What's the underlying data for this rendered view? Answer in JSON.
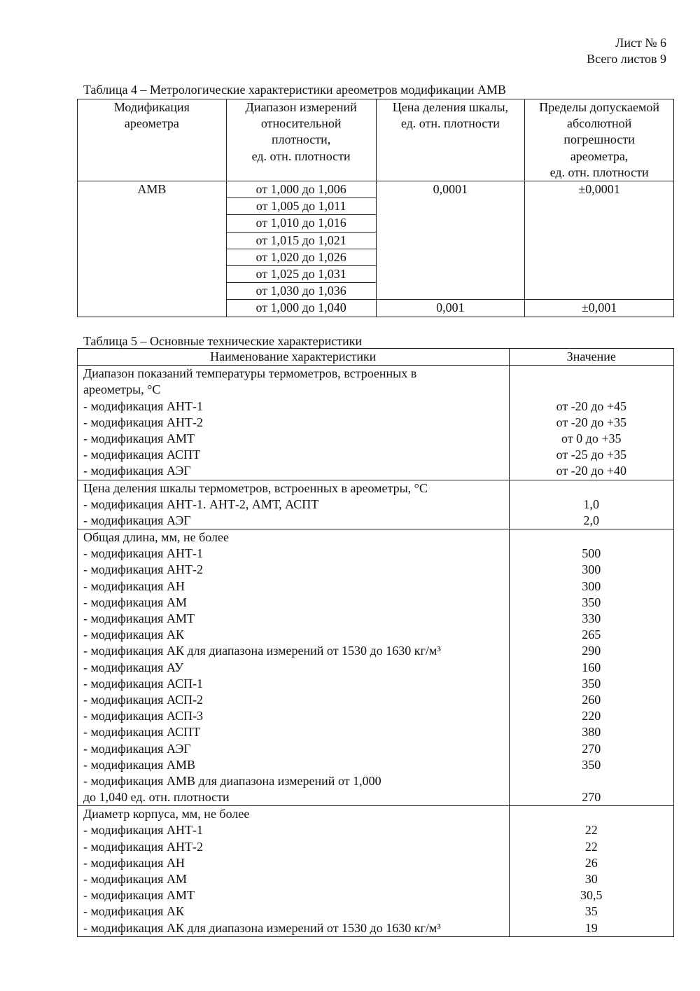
{
  "header": {
    "sheet": "Лист № 6",
    "total": "Всего листов 9"
  },
  "table4": {
    "caption": "Таблица 4 – Метрологические характеристики ареометров модификации АМВ",
    "headers": [
      "Модификация ареометра",
      "Диапазон измерений относительной плотности, ед. отн. плотности",
      "Цена деления шкалы, ед. отн. плотности",
      "Пределы допускаемой абсолютной погрешности ареометра, ед. отн. плотности"
    ],
    "header_lines": [
      [
        "Модификация",
        "ареометра"
      ],
      [
        "Диапазон измерений",
        "относительной",
        "плотности,",
        "ед. отн. плотности"
      ],
      [
        "Цена деления шкалы,",
        "ед. отн. плотности"
      ],
      [
        "Пределы допускаемой",
        "абсолютной",
        "погрешности",
        "ареометра,",
        "ед. отн. плотности"
      ]
    ],
    "modification": "АМВ",
    "ranges": [
      "от 1,000 до 1,006",
      "от 1,005 до 1,011",
      "от 1,010 до 1,016",
      "от 1,015 до 1,021",
      "от 1,020 до 1,026",
      "от 1,025 до 1,031",
      "от 1,030 до 1,036",
      "от 1,000 до 1,040"
    ],
    "division_1": "0,0001",
    "error_1": "±0,0001",
    "division_2": "0,001",
    "error_2": "±0,001"
  },
  "table5": {
    "caption": "Таблица 5 – Основные технические характеристики",
    "headers": [
      "Наименование характеристики",
      "Значение"
    ],
    "sections": [
      {
        "lines": [
          [
            "Диапазон показаний температуры термометров, встроенных в",
            ""
          ],
          [
            "ареометры, °С",
            ""
          ],
          [
            "- модификация АНТ-1",
            "от -20 до +45"
          ],
          [
            "- модификация АНТ-2",
            "от -20 до +35"
          ],
          [
            "- модификация АМТ",
            "от 0 до +35"
          ],
          [
            "- модификация АСПТ",
            "от -25 до +35"
          ],
          [
            "- модификация АЭГ",
            "от -20 до +40"
          ]
        ]
      },
      {
        "lines": [
          [
            "Цена деления шкалы термометров, встроенных в ареометры, °С",
            ""
          ],
          [
            "- модификация АНТ-1. АНТ-2, АМТ, АСПТ",
            "1,0"
          ],
          [
            "- модификация АЭГ",
            "2,0"
          ]
        ]
      },
      {
        "lines": [
          [
            "Общая длина, мм, не более",
            ""
          ],
          [
            "- модификация АНТ-1",
            "500"
          ],
          [
            "- модификация АНТ-2",
            "300"
          ],
          [
            "- модификация АН",
            "300"
          ],
          [
            "- модификация АМ",
            "350"
          ],
          [
            "- модификация АМТ",
            "330"
          ],
          [
            "- модификация АК",
            "265"
          ],
          [
            "- модификация АК для диапазона измерений от 1530 до 1630 кг/м³",
            "290"
          ],
          [
            "- модификация АУ",
            "160"
          ],
          [
            "- модификация АСП-1",
            "350"
          ],
          [
            "- модификация АСП-2",
            "260"
          ],
          [
            "- модификация АСП-3",
            "220"
          ],
          [
            "- модификация АСПТ",
            "380"
          ],
          [
            "- модификация АЭГ",
            "270"
          ],
          [
            "- модификация АМВ",
            "350"
          ],
          [
            "- модификация АМВ для диапазона измерений от 1,000",
            ""
          ],
          [
            "до 1,040 ед. отн. плотности",
            "270"
          ]
        ]
      },
      {
        "lines": [
          [
            "Диаметр корпуса, мм, не более",
            ""
          ],
          [
            "- модификация АНТ-1",
            "22"
          ],
          [
            "- модификация АНТ-2",
            "22"
          ],
          [
            "- модификация АН",
            "26"
          ],
          [
            "- модификация АМ",
            "30"
          ],
          [
            "- модификация АМТ",
            "30,5"
          ],
          [
            "- модификация АК",
            "35"
          ],
          [
            "- модификация АК для диапазона измерений от 1530 до 1630 кг/м³",
            "19"
          ]
        ]
      }
    ]
  }
}
